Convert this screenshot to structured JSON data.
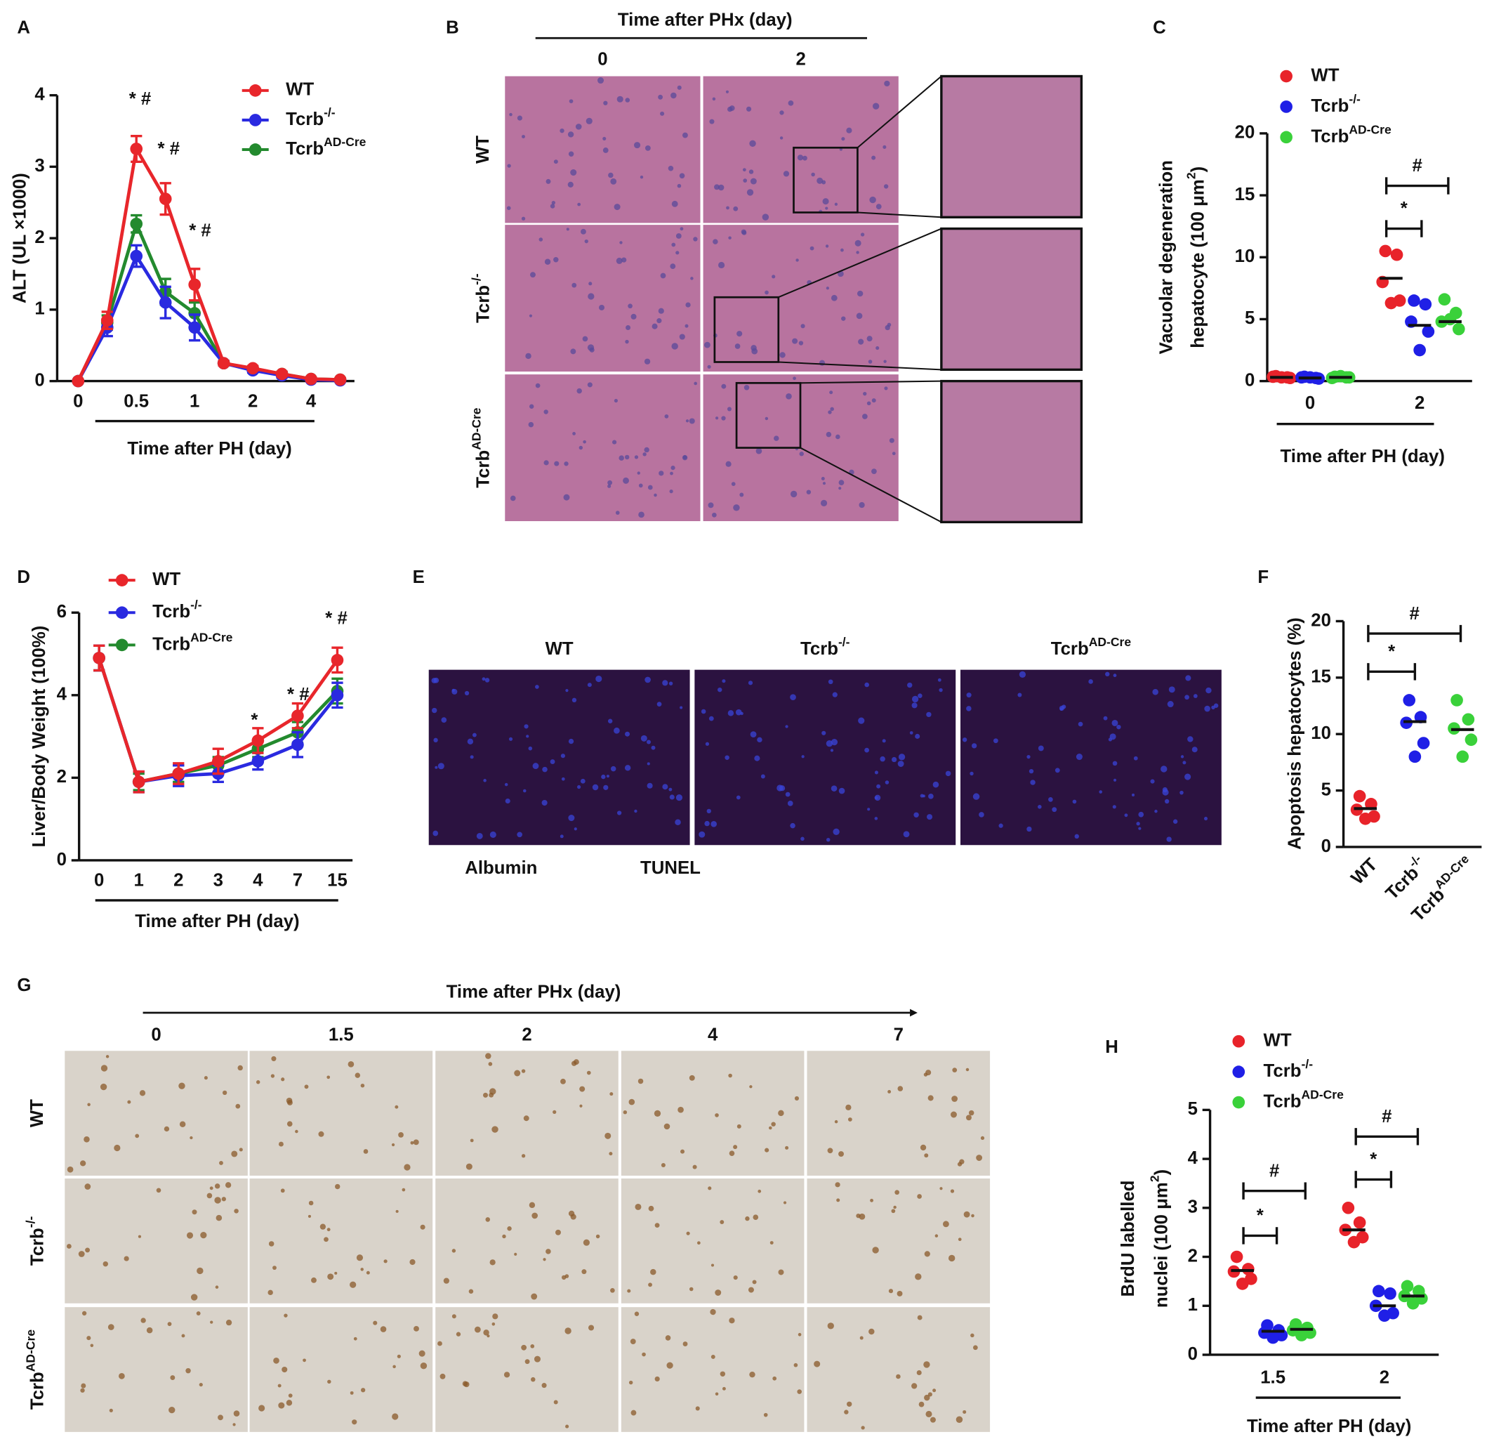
{
  "chart_data": [
    {
      "panel": "A",
      "type": "line",
      "ylabel": "ALT (UL ×1000)",
      "xlabel": "Time after PH (day)",
      "categories": [
        "0",
        null,
        "0.5",
        null,
        "1",
        null,
        "2",
        null,
        "4",
        null
      ],
      "ylim": [
        0,
        4
      ],
      "yticks": [
        0,
        1,
        2,
        3,
        4
      ],
      "series": [
        {
          "name": "WT",
          "color": "#e8262b",
          "values": [
            0,
            0.85,
            3.25,
            2.55,
            1.35,
            0.25,
            0.18,
            0.1,
            0.03,
            0.02
          ],
          "errors": [
            0,
            0.12,
            0.18,
            0.22,
            0.22,
            0.03,
            0.03,
            0.03,
            0.02,
            0.02
          ]
        },
        {
          "name": [
            "Tcrb",
            "-/-"
          ],
          "color": "#2a2ae0",
          "values": [
            0,
            0.75,
            1.75,
            1.1,
            0.75,
            0.25,
            0.15,
            0.08,
            0.02,
            0.01
          ],
          "errors": [
            0,
            0.12,
            0.15,
            0.22,
            0.18,
            0.03,
            0.03,
            0.03,
            0.02,
            0.02
          ]
        },
        {
          "name": [
            "Tcrb",
            "AD-Cre"
          ],
          "color": "#238a2e",
          "values": [
            0,
            0.82,
            2.2,
            1.25,
            0.95,
            0.25,
            0.17,
            0.1,
            0.03,
            0.02
          ],
          "errors": [
            0,
            0.1,
            0.12,
            0.18,
            0.15,
            0.03,
            0.03,
            0.03,
            0.02,
            0.02
          ]
        }
      ],
      "annotations": [
        "* #",
        "* #",
        "* #"
      ]
    },
    {
      "panel": "C",
      "type": "dot",
      "ylabel": [
        "Vacuolar degeneration",
        [
          "hepatocyte (100 μm",
          "2",
          ")"
        ]
      ],
      "xlabel": "Time after PH (day)",
      "categories": [
        "0",
        "2"
      ],
      "ylim": [
        0,
        20
      ],
      "yticks": [
        0,
        5,
        10,
        15,
        20
      ],
      "series": [
        {
          "name": "WT",
          "color": "#e8232a",
          "values": [
            [
              0.4,
              0.3,
              0.35,
              0.25,
              0.3
            ],
            [
              10.5,
              10.2,
              8.0,
              6.5,
              6.3
            ]
          ],
          "means": [
            0.3,
            8.3
          ]
        },
        {
          "name": [
            "Tcrb",
            "-/-"
          ],
          "color": "#1f1fe6",
          "values": [
            [
              0.35,
              0.25,
              0.3,
              0.2,
              0.3
            ],
            [
              6.5,
              6.2,
              4.8,
              4.0,
              2.5
            ]
          ],
          "means": [
            0.25,
            4.5
          ]
        },
        {
          "name": [
            "Tcrb",
            "AD-Cre"
          ],
          "color": "#3ad13a",
          "values": [
            [
              0.35,
              0.3,
              0.25,
              0.3,
              0.4
            ],
            [
              6.6,
              5.5,
              4.8,
              4.2,
              5.0
            ]
          ],
          "means": [
            0.3,
            4.8
          ]
        }
      ],
      "annotations": [
        "*",
        "#"
      ]
    },
    {
      "panel": "D",
      "type": "line",
      "ylabel": "Liver/Body Weight  (100%)",
      "xlabel": "Time after PH (day)",
      "categories": [
        "0",
        "1",
        "2",
        "3",
        "4",
        "7",
        "15"
      ],
      "ylim": [
        0,
        6
      ],
      "yticks": [
        0,
        2,
        4,
        6
      ],
      "series": [
        {
          "name": "WT",
          "color": "#e8262b",
          "values": [
            4.9,
            1.9,
            2.1,
            2.4,
            2.9,
            3.5,
            4.85
          ],
          "errors": [
            0.3,
            0.25,
            0.25,
            0.3,
            0.3,
            0.3,
            0.3
          ]
        },
        {
          "name": [
            "Tcrb",
            "-/-"
          ],
          "color": "#2a2ae0",
          "values": [
            4.9,
            1.9,
            2.05,
            2.1,
            2.4,
            2.8,
            4.0
          ],
          "errors": [
            0.3,
            0.25,
            0.25,
            0.2,
            0.2,
            0.3,
            0.3
          ]
        },
        {
          "name": [
            "Tcrb",
            "AD-Cre"
          ],
          "color": "#238a2e",
          "values": [
            4.9,
            1.9,
            2.1,
            2.3,
            2.7,
            3.1,
            4.1
          ],
          "errors": [
            0.3,
            0.2,
            0.2,
            0.2,
            0.2,
            0.25,
            0.3
          ]
        }
      ],
      "annotations": [
        "*",
        "* #",
        "* #"
      ]
    },
    {
      "panel": "F",
      "type": "dot",
      "ylabel": "Apoptosis hepatocytes (%)",
      "categories": [
        "WT",
        [
          "Tcrb",
          "-/-"
        ],
        [
          "Tcrb",
          "AD-Cre"
        ]
      ],
      "ylim": [
        0,
        20
      ],
      "yticks": [
        0,
        5,
        10,
        15,
        20
      ],
      "values": [
        [
          4.5,
          3.8,
          3.3,
          2.7,
          2.5
        ],
        [
          13,
          11.5,
          11,
          9.2,
          8
        ],
        [
          13,
          11.3,
          10.5,
          9.5,
          8
        ]
      ],
      "colors": [
        "#e8232a",
        "#1f1fe6",
        "#3ad13a"
      ],
      "means": [
        3.4,
        11.1,
        10.4
      ],
      "annotations": [
        "*",
        "#"
      ]
    },
    {
      "panel": "H",
      "type": "dot",
      "ylabel": [
        "BrdU labelled",
        [
          "nuclei (100 μm",
          "2",
          ")"
        ]
      ],
      "xlabel": "Time after PH (day)",
      "categories": [
        "1.5",
        "2"
      ],
      "ylim": [
        0,
        5
      ],
      "yticks": [
        0,
        1,
        2,
        3,
        4,
        5
      ],
      "series": [
        {
          "name": "WT",
          "color": "#e8232a",
          "values": [
            [
              2.0,
              1.75,
              1.7,
              1.55,
              1.45
            ],
            [
              3.0,
              2.7,
              2.55,
              2.4,
              2.3
            ]
          ],
          "means": [
            1.72,
            2.55
          ]
        },
        {
          "name": [
            "Tcrb",
            "-/-"
          ],
          "color": "#1f1fe6",
          "values": [
            [
              0.6,
              0.5,
              0.45,
              0.4,
              0.35
            ],
            [
              1.3,
              1.25,
              1.0,
              0.85,
              0.8
            ]
          ],
          "means": [
            0.48,
            1.0
          ]
        },
        {
          "name": [
            "Tcrb",
            "AD-Cre"
          ],
          "color": "#3ad13a",
          "values": [
            [
              0.62,
              0.55,
              0.5,
              0.45,
              0.4
            ],
            [
              1.4,
              1.3,
              1.2,
              1.15,
              1.05
            ]
          ],
          "means": [
            0.52,
            1.2
          ]
        }
      ],
      "annotations": [
        "*",
        "#",
        "*",
        "#"
      ]
    }
  ],
  "images": [
    {
      "panel": "B",
      "title": "Time after PHx (day)",
      "columns": [
        "0",
        "2"
      ],
      "rows": [
        "WT",
        [
          "Tcrb",
          "-/-"
        ],
        [
          "Tcrb",
          "AD-Cre"
        ]
      ]
    },
    {
      "panel": "E",
      "columns": [
        "WT",
        [
          "Tcrb",
          "-/-"
        ],
        [
          "Tcrb",
          "AD-Cre"
        ]
      ],
      "legend": [
        "Albumin",
        "TUNEL"
      ]
    },
    {
      "panel": "G",
      "title": "Time after PHx (day)",
      "columns": [
        "0",
        "1.5",
        "2",
        "4",
        "7"
      ],
      "rows": [
        "WT",
        [
          "Tcrb",
          "-/-"
        ],
        [
          "Tcrb",
          "AD-Cre"
        ]
      ]
    }
  ]
}
